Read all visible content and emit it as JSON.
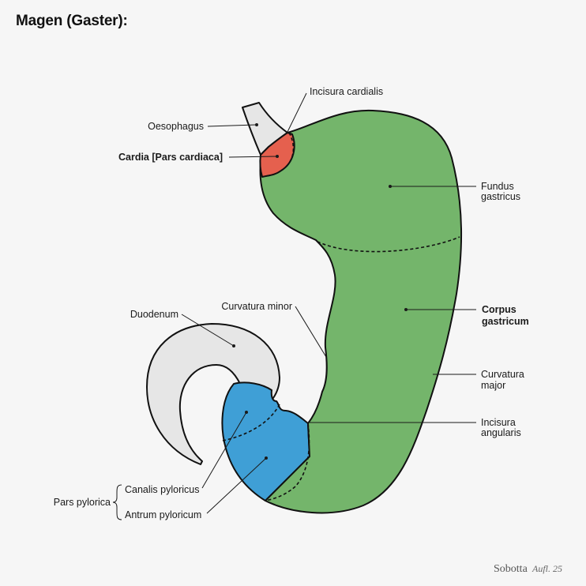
{
  "title": "Magen (Gaster):",
  "colors": {
    "fundus_corpus": "#74b56b",
    "cardia": "#e5604e",
    "pars_pylorica": "#3f9fd6",
    "duodenum_oesophagus": "#e6e6e6",
    "outline": "#111111",
    "background": "#f6f6f6"
  },
  "labels": {
    "incisura_cardialis": "Incisura cardialis",
    "oesophagus": "Oesophagus",
    "cardia": "Cardia [Pars cardiaca]",
    "fundus_line1": "Fundus",
    "fundus_line2": "gastricus",
    "corpus_line1": "Corpus",
    "corpus_line2": "gastricum",
    "curvatura_minor": "Curvatura minor",
    "duodenum": "Duodenum",
    "curvatura_major_line1": "Curvatura",
    "curvatura_major_line2": "major",
    "incisura_angularis_line1": "Incisura",
    "incisura_angularis_line2": "angularis",
    "pars_pylorica": "Pars pylorica",
    "canalis_pyloricus": "Canalis pyloricus",
    "antrum_pyloricum": "Antrum pyloricum"
  },
  "credit": {
    "name": "Sobotta",
    "edition": "Aufl. 25"
  }
}
